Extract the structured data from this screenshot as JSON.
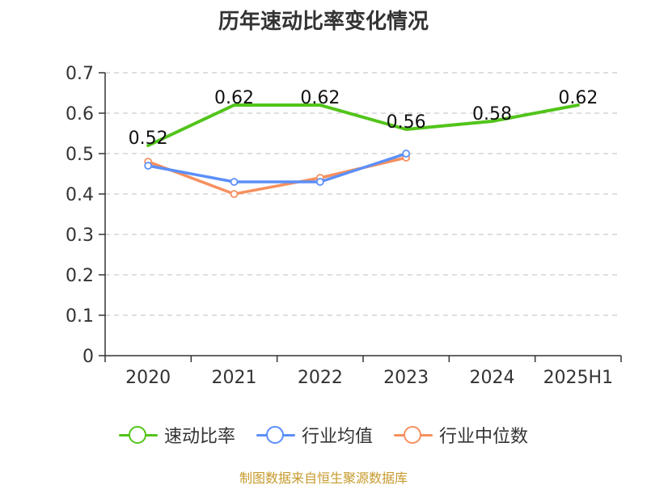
{
  "chart_data": {
    "type": "line",
    "title": "历年速动比率变化情况",
    "categories": [
      "2020",
      "2021",
      "2022",
      "2023",
      "2024",
      "2025H1"
    ],
    "ylim": [
      0,
      0.7
    ],
    "yticks": [
      "0",
      "0.1",
      "0.2",
      "0.3",
      "0.4",
      "0.5",
      "0.6",
      "0.7"
    ],
    "grid": true,
    "legend_position": "bottom",
    "series": [
      {
        "name": "速动比率",
        "color": "#52c41a",
        "values": [
          0.52,
          0.62,
          0.62,
          0.56,
          0.58,
          0.62
        ],
        "labels": [
          "0.52",
          "0.62",
          "0.62",
          "0.56",
          "0.58",
          "0.62"
        ]
      },
      {
        "name": "行业均值",
        "color": "#5b8ff9",
        "values": [
          0.47,
          0.43,
          0.43,
          0.5,
          null,
          null
        ]
      },
      {
        "name": "行业中位数",
        "color": "#f6905f",
        "values": [
          0.48,
          0.4,
          0.44,
          0.49,
          null,
          null
        ]
      }
    ]
  },
  "source": "制图数据来自恒生聚源数据库"
}
